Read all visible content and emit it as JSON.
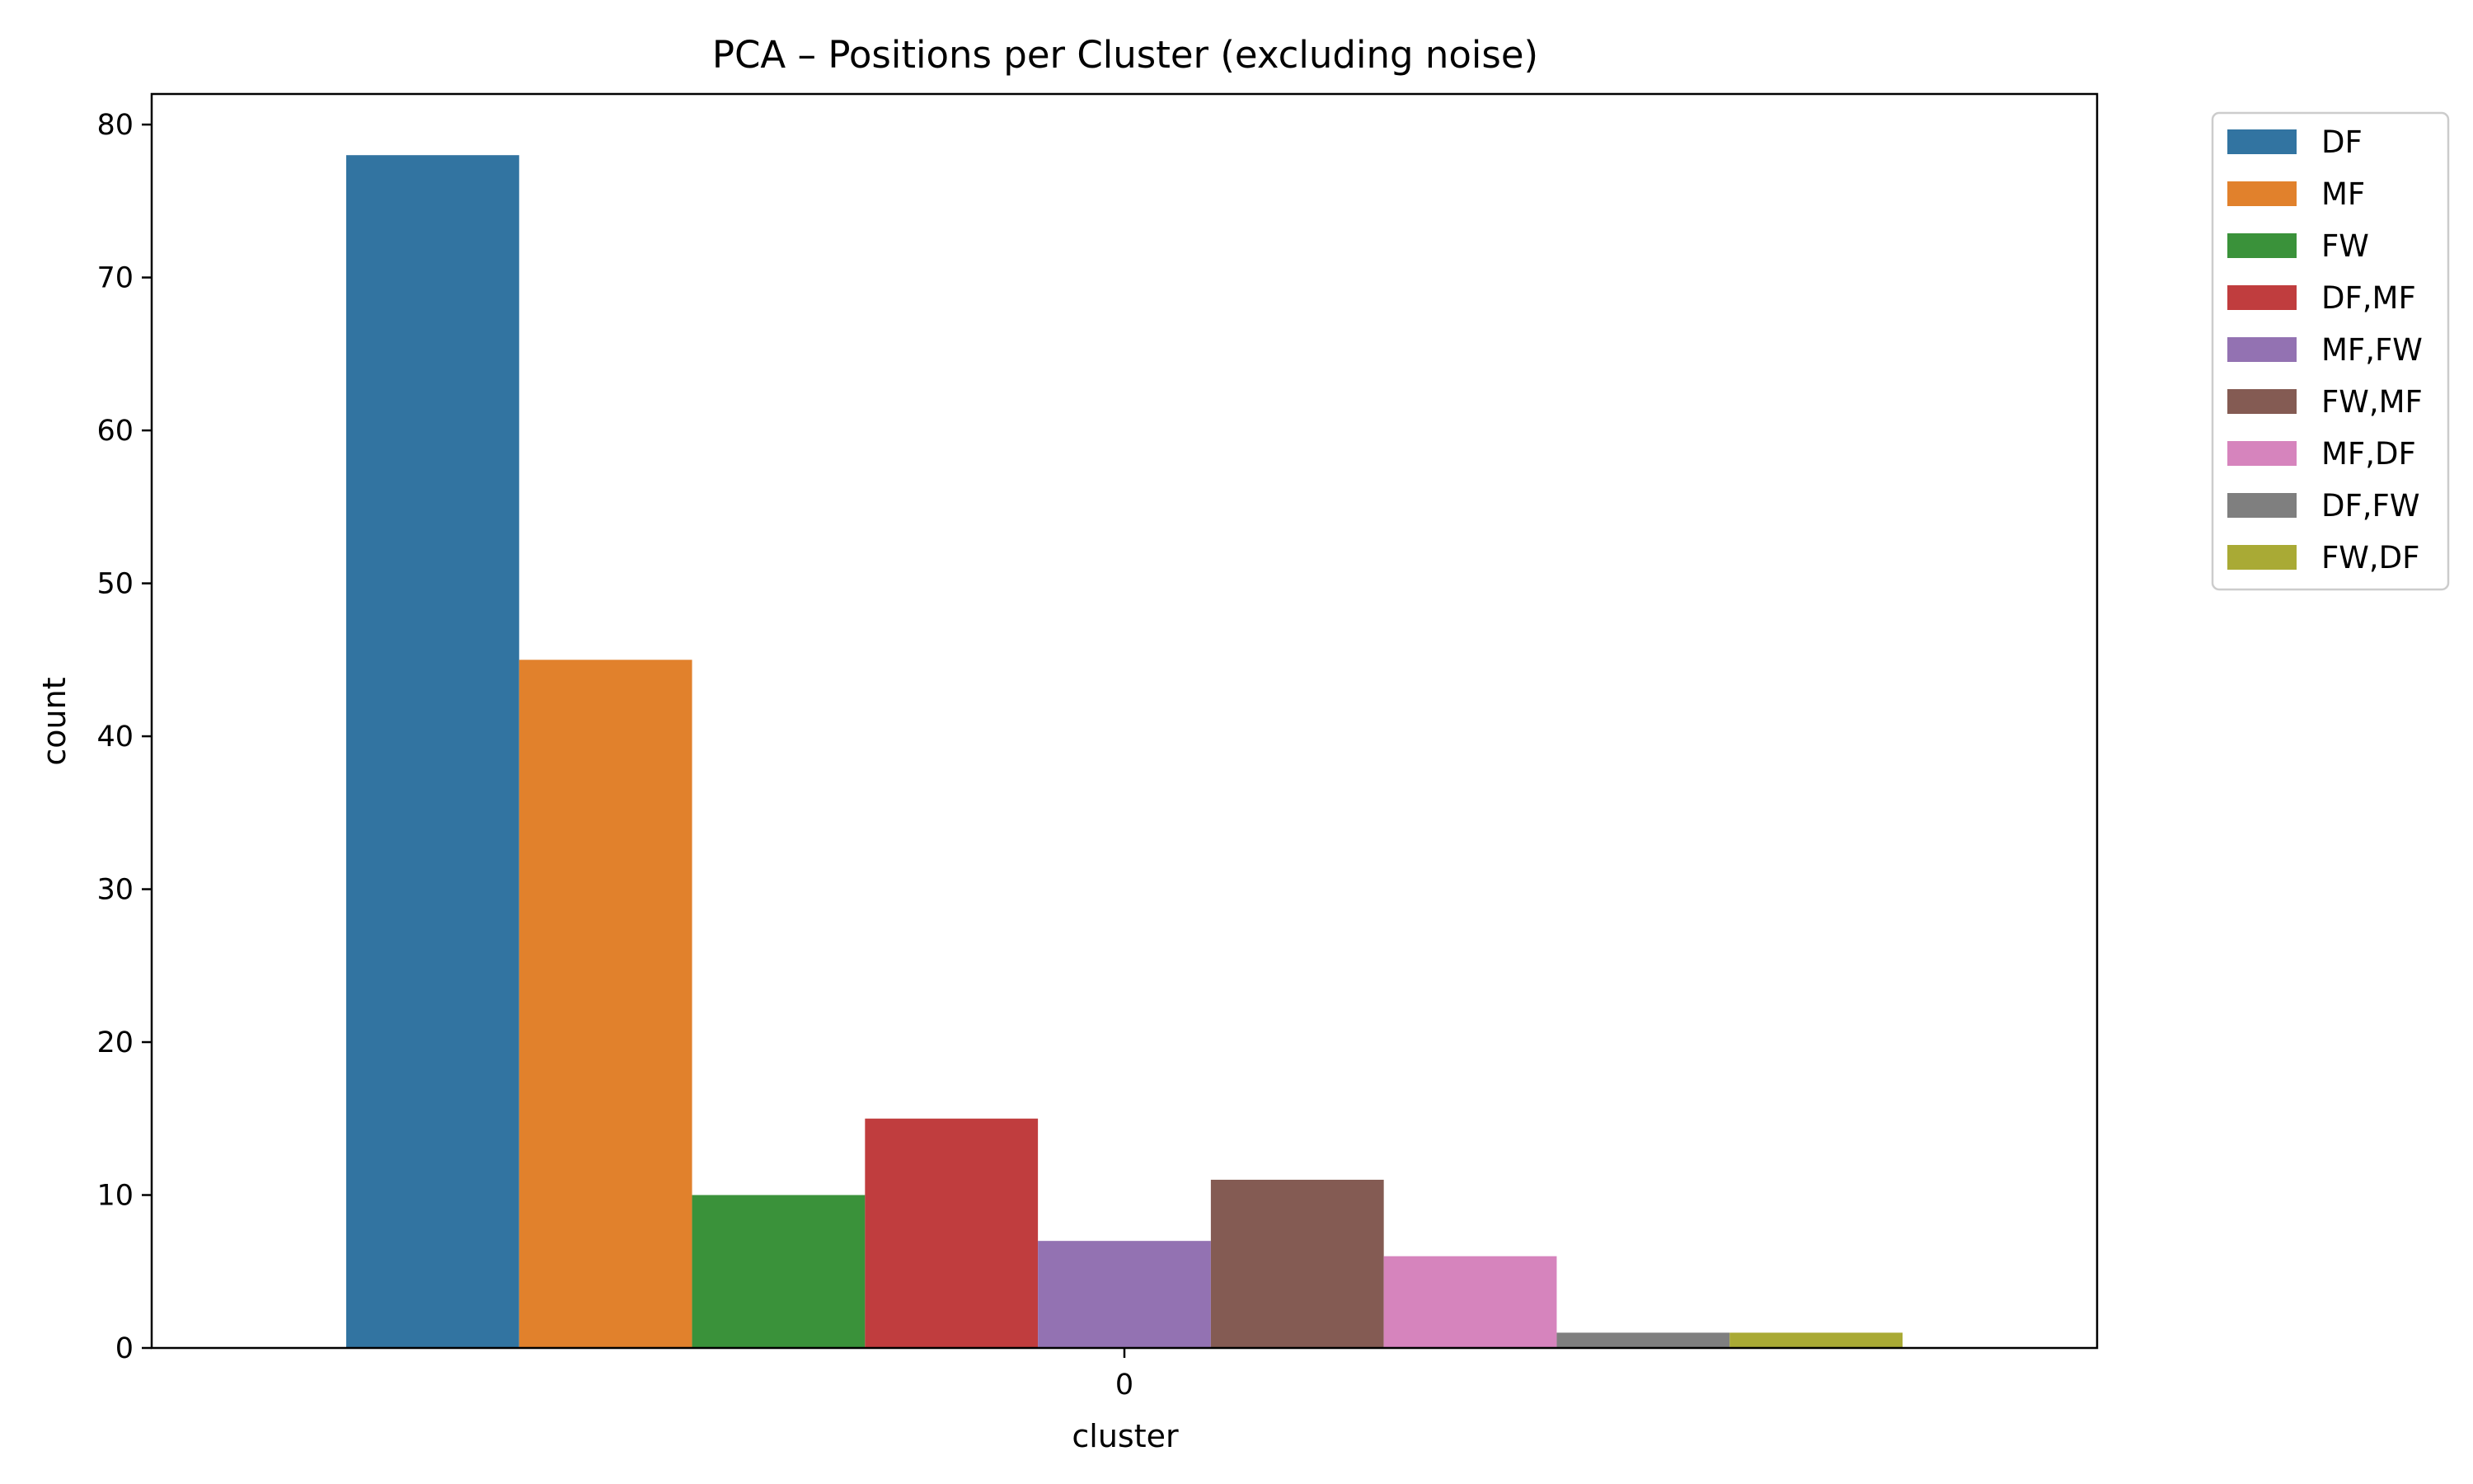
{
  "chart_data": {
    "type": "bar",
    "title": "PCA – Positions per Cluster (excluding noise)",
    "xlabel": "cluster",
    "ylabel": "count",
    "categories": [
      "0"
    ],
    "ylim": [
      0,
      82
    ],
    "yticks": [
      0,
      10,
      20,
      30,
      40,
      50,
      60,
      70,
      80
    ],
    "grid": false,
    "legend_position": "outside-top-right",
    "series": [
      {
        "name": "DF",
        "values": [
          78
        ],
        "color": "#3274a1"
      },
      {
        "name": "MF",
        "values": [
          45
        ],
        "color": "#e1812c"
      },
      {
        "name": "FW",
        "values": [
          10
        ],
        "color": "#3a923a"
      },
      {
        "name": "DF,MF",
        "values": [
          15
        ],
        "color": "#c03d3e"
      },
      {
        "name": "MF,FW",
        "values": [
          7
        ],
        "color": "#9372b2"
      },
      {
        "name": "FW,MF",
        "values": [
          11
        ],
        "color": "#845b53"
      },
      {
        "name": "MF,DF",
        "values": [
          6
        ],
        "color": "#d684bd"
      },
      {
        "name": "DF,FW",
        "values": [
          1
        ],
        "color": "#7f7f7f"
      },
      {
        "name": "FW,DF",
        "values": [
          1
        ],
        "color": "#a9aa35"
      }
    ]
  }
}
